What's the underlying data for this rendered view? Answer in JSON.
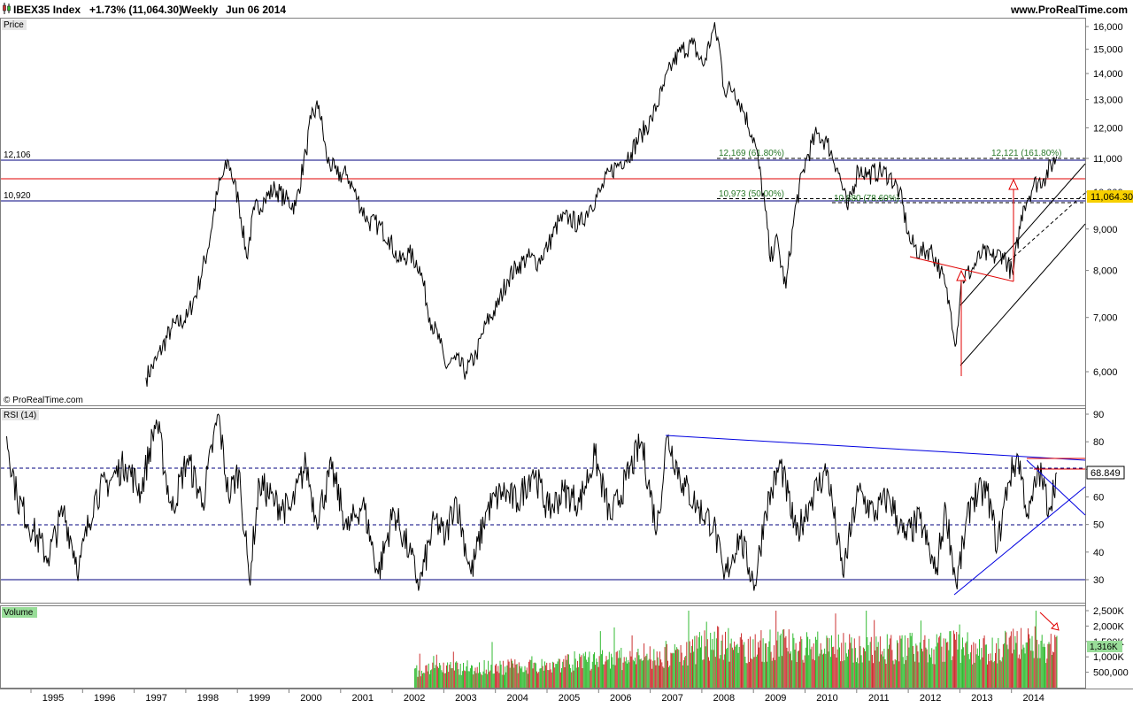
{
  "header": {
    "title": "IBEX35 Index",
    "change": "+1.73% (11,064.30)",
    "period": "Weekly",
    "date": "Jun 06 2014",
    "site": "www.ProRealTime.com"
  },
  "panels": {
    "price_label": "Price",
    "rsi_label": "RSI (14)",
    "volume_label": "Volume",
    "copyright": "© ProRealTime.com"
  },
  "colors": {
    "price_line": "#000000",
    "reference_line": "#00007f",
    "resistance_red": "#e00000",
    "channel_black": "#000000",
    "rsi_trend_blue": "#0000e0",
    "volume_up": "#33bb33",
    "volume_down": "#cc3333",
    "last_value_bg": "#f7d000"
  },
  "chart_data": [
    {
      "type": "line",
      "panel": "price",
      "ylim": [
        5500,
        16300
      ],
      "y_ticks": [
        "6,000",
        "7,000",
        "8,000",
        "9,000",
        "10,000",
        "11,000",
        "12,000",
        "13,000",
        "14,000",
        "15,000",
        "16,000"
      ],
      "x_ticks": [
        "1995",
        "1996",
        "1997",
        "1998",
        "1999",
        "2000",
        "2001",
        "2002",
        "2003",
        "2004",
        "2005",
        "2006",
        "2007",
        "2008",
        "2009",
        "2010",
        "2011",
        "2012",
        "2013",
        "2014"
      ],
      "series": [
        {
          "x": [
            1996.8,
            1997.0,
            1997.3,
            1997.6,
            1997.8,
            1998.0,
            1998.2,
            1998.4,
            1998.6,
            1998.75,
            1998.9,
            1999.1,
            1999.3,
            1999.5,
            1999.7,
            1999.9,
            2000.0,
            2000.15,
            2000.3,
            2000.5,
            2000.7,
            2000.9,
            2001.1,
            2001.3,
            2001.5,
            2001.7,
            2001.9,
            2002.1,
            2002.3,
            2002.5,
            2002.6,
            2002.8,
            2003.0,
            2003.2,
            2003.4,
            2003.6,
            2003.8,
            2004.0,
            2004.2,
            2004.4,
            2004.6,
            2004.8,
            2005.0,
            2005.2,
            2005.4,
            2005.6,
            2005.8,
            2006.0,
            2006.2,
            2006.4,
            2006.6,
            2006.8,
            2007.0,
            2007.2,
            2007.4,
            2007.6,
            2007.8,
            2007.9,
            2008.0,
            2008.2,
            2008.4,
            2008.6,
            2008.8,
            2008.9,
            2009.0,
            2009.2,
            2009.4,
            2009.6,
            2009.8,
            2010.0,
            2010.2,
            2010.4,
            2010.6,
            2010.8,
            2011.0,
            2011.2,
            2011.4,
            2011.6,
            2011.8,
            2012.0,
            2012.2,
            2012.4,
            2012.5,
            2012.6,
            2012.8,
            2013.0,
            2013.2,
            2013.4,
            2013.6,
            2013.8,
            2014.0,
            2014.2,
            2014.45
          ],
          "y": [
            5900,
            6200,
            6800,
            7000,
            7600,
            8500,
            10100,
            10900,
            9700,
            8300,
            9500,
            9800,
            10100,
            9800,
            9600,
            11200,
            12300,
            12800,
            11000,
            10500,
            10500,
            9800,
            9200,
            9100,
            8800,
            8200,
            8400,
            8100,
            7000,
            6500,
            6100,
            6200,
            6000,
            6300,
            6900,
            7200,
            7800,
            8100,
            8300,
            8200,
            8600,
            9200,
            9300,
            9100,
            9600,
            10000,
            10600,
            10900,
            11200,
            11800,
            12300,
            13300,
            14400,
            15000,
            15200,
            14300,
            15900,
            15300,
            13400,
            13400,
            12500,
            11500,
            9500,
            8200,
            8800,
            7600,
            9700,
            11000,
            11800,
            11500,
            10700,
            9500,
            10700,
            10500,
            10600,
            10500,
            10000,
            8700,
            8400,
            8500,
            8000,
            7100,
            6500,
            7800,
            8000,
            8400,
            8300,
            8400,
            7900,
            9600,
            10200,
            10400,
            11064
          ]
        }
      ],
      "reference_lines": [
        {
          "value": 12106,
          "label": "12,106"
        },
        {
          "value": 10920,
          "label": "10,920"
        },
        {
          "value": 11550,
          "label": ""
        }
      ],
      "annotations": [
        "12,169 (61.80%)",
        "10,973 (50.00%)",
        "10,880 (78.60%)",
        "12,121 (161.80%)"
      ],
      "last_value": "11,064.30"
    },
    {
      "type": "line",
      "panel": "rsi",
      "ylim": [
        25,
        92
      ],
      "y_ticks": [
        "30",
        "40",
        "50",
        "60",
        "70",
        "80",
        "90"
      ],
      "levels": [
        30,
        50,
        70
      ],
      "series": [
        {
          "x": [
            1994.1,
            1994.3,
            1994.6,
            1994.9,
            1995.2,
            1995.5,
            1995.8,
            1996.1,
            1996.4,
            1996.7,
            1997.0,
            1997.3,
            1997.6,
            1997.9,
            1998.2,
            1998.4,
            1998.6,
            1998.8,
            1999.0,
            1999.3,
            1999.6,
            1999.9,
            2000.1,
            2000.4,
            2000.7,
            2001.0,
            2001.3,
            2001.6,
            2001.9,
            2002.1,
            2002.4,
            2002.6,
            2002.8,
            2003.1,
            2003.4,
            2003.7,
            2004.0,
            2004.3,
            2004.6,
            2004.9,
            2005.2,
            2005.5,
            2005.8,
            2006.1,
            2006.4,
            2006.7,
            2006.9,
            2007.2,
            2007.5,
            2007.8,
            2008.0,
            2008.3,
            2008.6,
            2008.8,
            2009.1,
            2009.4,
            2009.7,
            2010.0,
            2010.3,
            2010.6,
            2010.9,
            2011.2,
            2011.5,
            2011.8,
            2012.1,
            2012.3,
            2012.5,
            2012.8,
            2013.1,
            2013.3,
            2013.5,
            2013.7,
            2013.9,
            2014.1,
            2014.3,
            2014.45
          ],
          "y": [
            82,
            60,
            48,
            38,
            55,
            34,
            60,
            66,
            72,
            62,
            88,
            55,
            74,
            58,
            90,
            60,
            70,
            30,
            65,
            58,
            55,
            72,
            52,
            70,
            48,
            58,
            32,
            55,
            40,
            28,
            52,
            45,
            60,
            32,
            55,
            62,
            58,
            70,
            55,
            62,
            58,
            75,
            52,
            66,
            80,
            48,
            82,
            65,
            56,
            50,
            30,
            46,
            28,
            55,
            72,
            46,
            60,
            70,
            32,
            62,
            54,
            60,
            45,
            52,
            32,
            56,
            28,
            60,
            62,
            42,
            65,
            75,
            52,
            70,
            56,
            68.8
          ]
        }
      ],
      "last_value": "68.849"
    },
    {
      "type": "bar",
      "panel": "volume",
      "y_ticks": [
        "500,000",
        "1,000K",
        "1,500K",
        "2,000K",
        "2,500K"
      ],
      "x_range": [
        2002.0,
        2014.45
      ],
      "series": [
        {
          "x": [
            2002.0,
            2003.0,
            2004.0,
            2005.0,
            2006.0,
            2007.0,
            2007.8,
            2008.5,
            2009.0,
            2010.0,
            2011.0,
            2012.0,
            2012.5,
            2013.0,
            2013.6,
            2014.0,
            2014.45
          ],
          "y": [
            600,
            700,
            750,
            900,
            1000,
            1100,
            1600,
            1400,
            1500,
            1450,
            1400,
            1350,
            1450,
            1300,
            1500,
            1600,
            1316
          ]
        }
      ],
      "last_value": "1,316K"
    }
  ]
}
